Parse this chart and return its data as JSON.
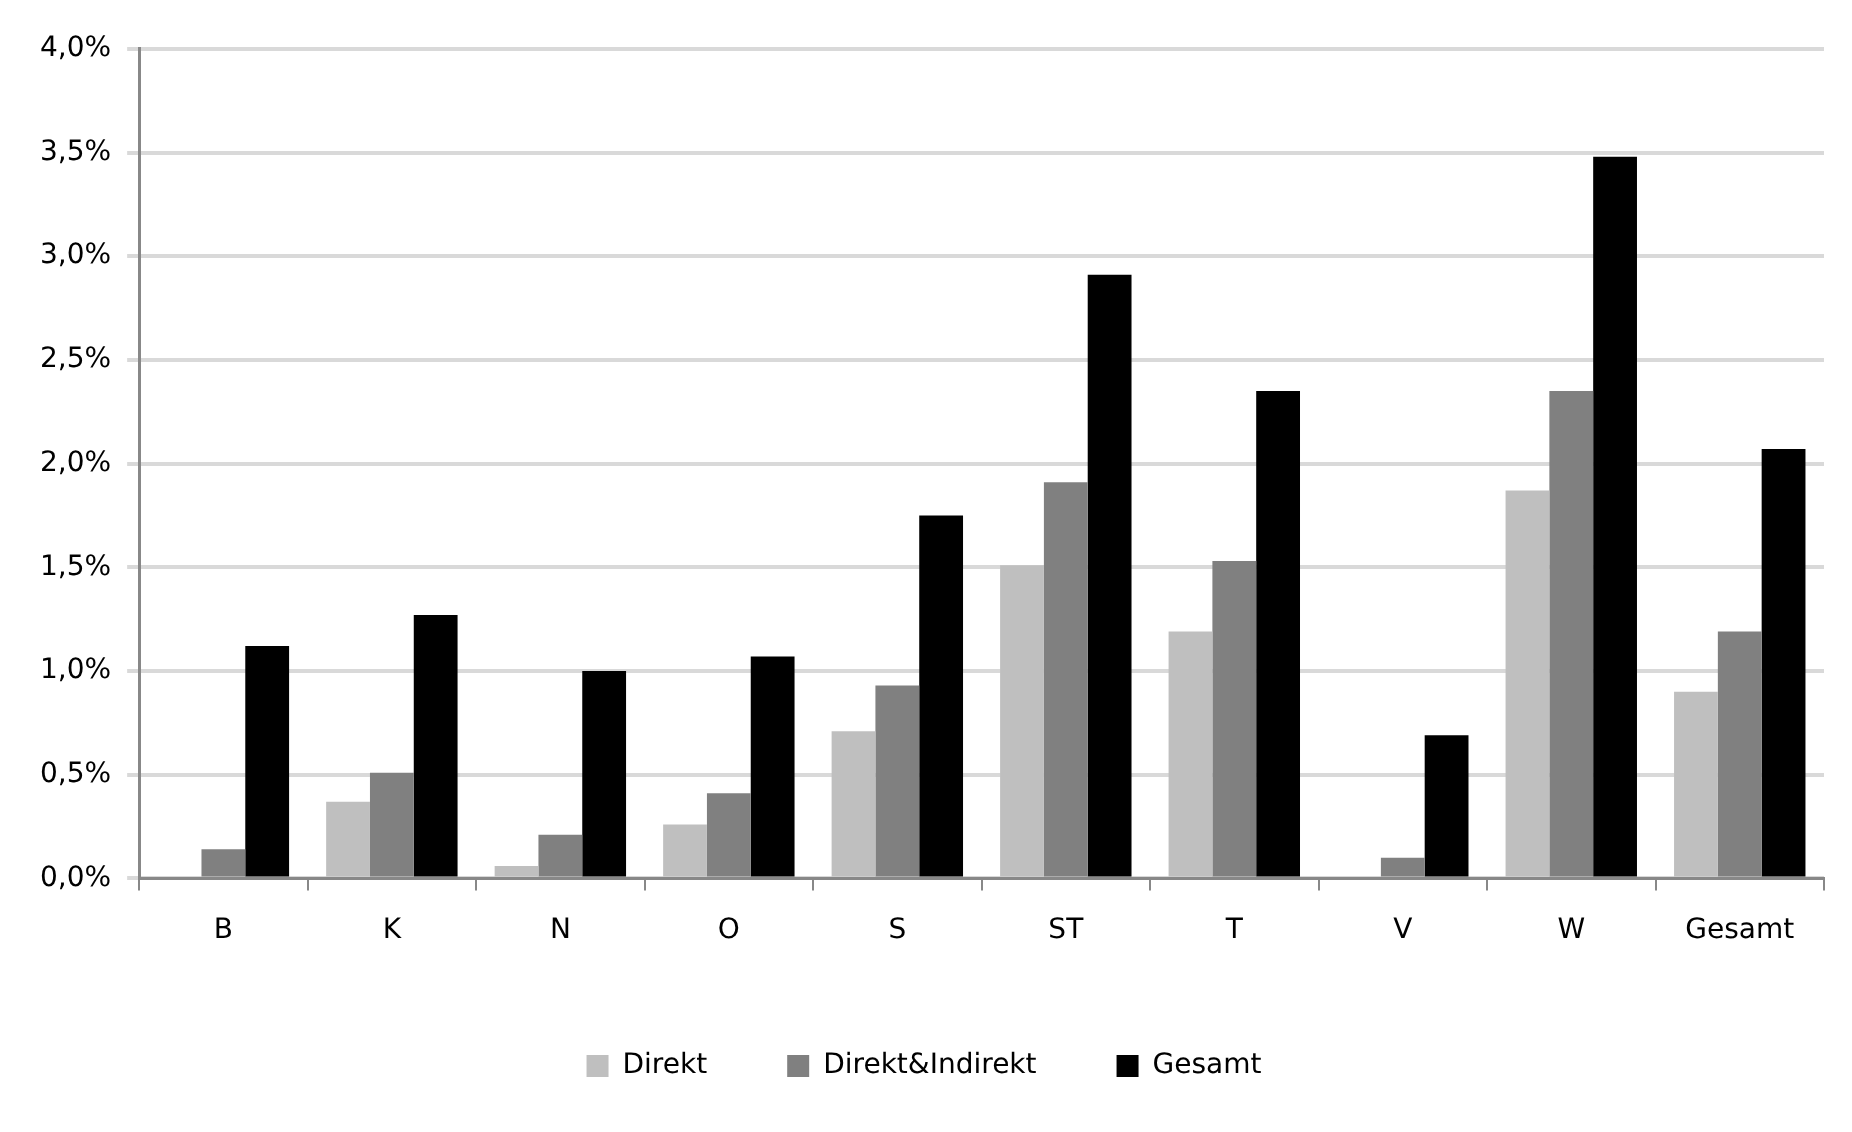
{
  "chart_data": {
    "type": "bar",
    "categories": [
      "B",
      "K",
      "N",
      "O",
      "S",
      "ST",
      "T",
      "V",
      "W",
      "Gesamt"
    ],
    "series": [
      {
        "name": "Direkt",
        "color": "#bfbfbf",
        "values": [
          0,
          0.37,
          0.06,
          0.26,
          0.71,
          1.51,
          1.19,
          0,
          1.87,
          0.9
        ]
      },
      {
        "name": "Direkt&Indirekt",
        "color": "#808080",
        "values": [
          0.14,
          0.51,
          0.21,
          0.41,
          0.93,
          1.91,
          1.53,
          0.1,
          2.35,
          1.19
        ]
      },
      {
        "name": "Gesamt",
        "color": "#000000",
        "values": [
          1.12,
          1.27,
          1.0,
          1.07,
          1.75,
          2.91,
          2.35,
          0.69,
          3.48,
          2.07
        ]
      }
    ],
    "ylim": [
      0,
      4
    ],
    "yticks": [
      {
        "value": 0,
        "label": "0,0%"
      },
      {
        "value": 0.5,
        "label": "0,5%"
      },
      {
        "value": 1,
        "label": "1,0%"
      },
      {
        "value": 1.5,
        "label": "1,5%"
      },
      {
        "value": 2,
        "label": "2,0%"
      },
      {
        "value": 2.5,
        "label": "2,5%"
      },
      {
        "value": 3,
        "label": "3,0%"
      },
      {
        "value": 3.5,
        "label": "3,5%"
      },
      {
        "value": 4,
        "label": "4,0%"
      }
    ],
    "grid": "y",
    "legend": "bottom"
  }
}
